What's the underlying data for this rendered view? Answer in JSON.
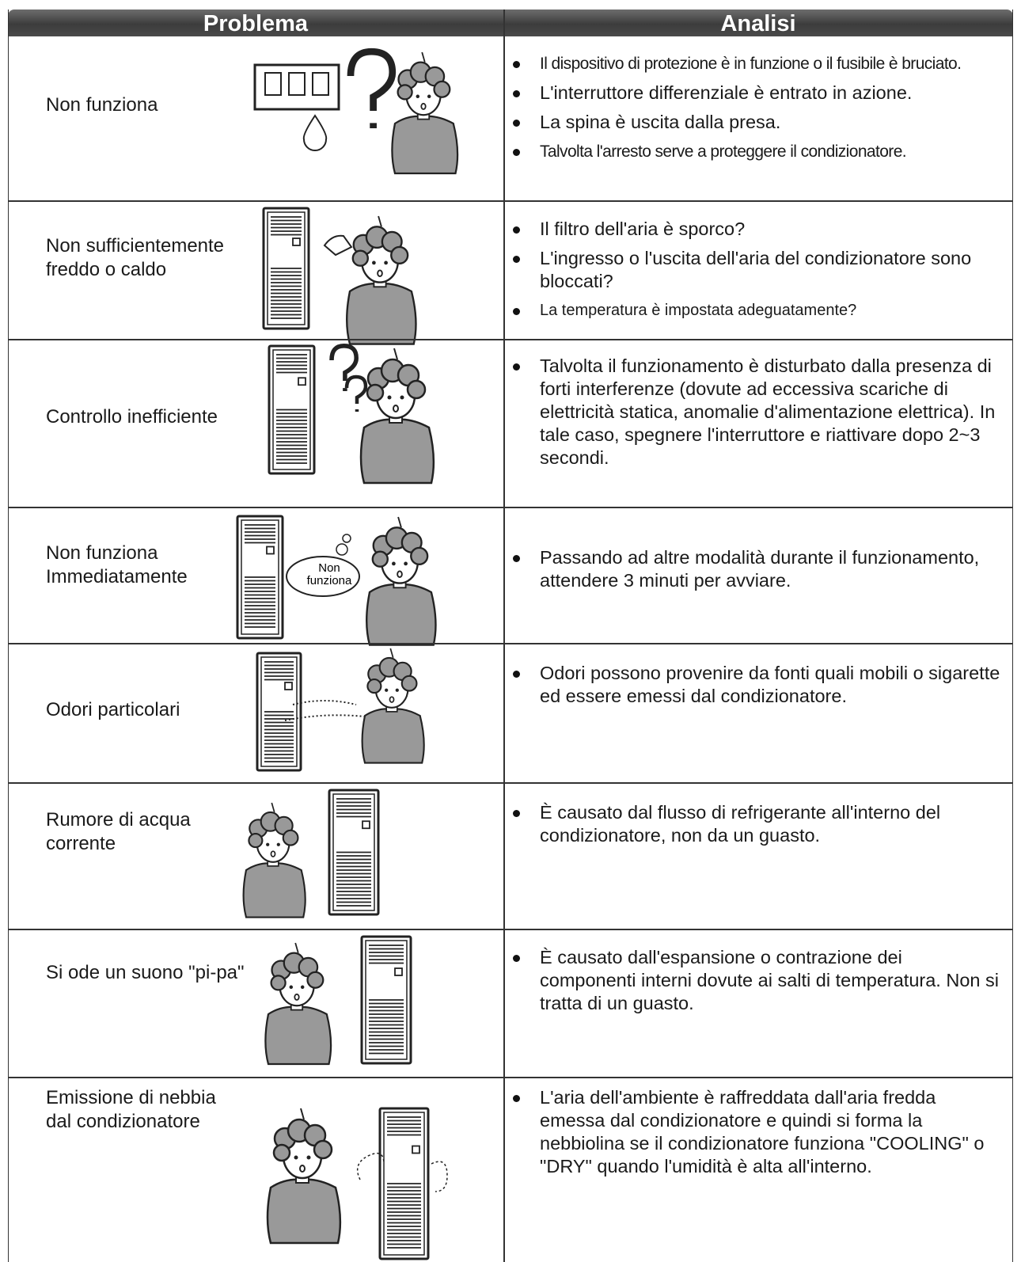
{
  "header": {
    "problem": "Problema",
    "analysis": "Analisi"
  },
  "rows": [
    {
      "problem": "Non funziona",
      "analysis": [
        "Il dispositivo di protezione è in funzione o il fusibile è bruciato.",
        "L'interruttore differenziale è entrato in azione.",
        "La spina è uscita dalla presa.",
        "Talvolta l'arresto serve a proteggere il condizionatore."
      ]
    },
    {
      "problem": "Non sufficientemente\nfreddo o caldo",
      "analysis": [
        "Il filtro dell'aria è sporco?",
        "L'ingresso o l'uscita dell'aria del condizionatore sono bloccati?",
        "La temperatura è impostata adeguatamente?"
      ]
    },
    {
      "problem": "Controllo inefficiente",
      "analysis": [
        "Talvolta il funzionamento è disturbato dalla presenza di forti interferenze (dovute ad eccessiva scariche di elettricità statica, anomalie d'alimentazione elettrica). In tale caso, spegnere l'interruttore e riattivare dopo 2~3 secondi."
      ]
    },
    {
      "problem": "Non funziona\nImmediatamente",
      "bubble": "Non\nfunziona",
      "analysis": [
        "Passando ad altre modalità durante il funzionamento, attendere 3 minuti per avviare."
      ]
    },
    {
      "problem": "Odori particolari",
      "analysis": [
        "Odori possono provenire da fonti quali mobili o sigarette ed essere emessi dal condizionatore."
      ]
    },
    {
      "problem": "Rumore di acqua\ncorrente",
      "analysis": [
        "È causato dal flusso di refrigerante all'interno del condizionatore, non da un guasto."
      ]
    },
    {
      "problem": "Si ode un suono \"pi-pa\"",
      "analysis": [
        "È causato dall'espansione o contrazione dei componenti interni dovute ai salti di temperatura. Non si tratta di un guasto."
      ]
    },
    {
      "problem": "Emissione di nebbia\ndal condizionatore",
      "analysis": [
        "L'aria dell'ambiente è raffreddata dall'aria fredda emessa dal condizionatore e quindi si forma la nebbiolina se il condizionatore funziona \"COOLING\" o \"DRY\" quando l'umidità è alta all'interno."
      ]
    }
  ]
}
